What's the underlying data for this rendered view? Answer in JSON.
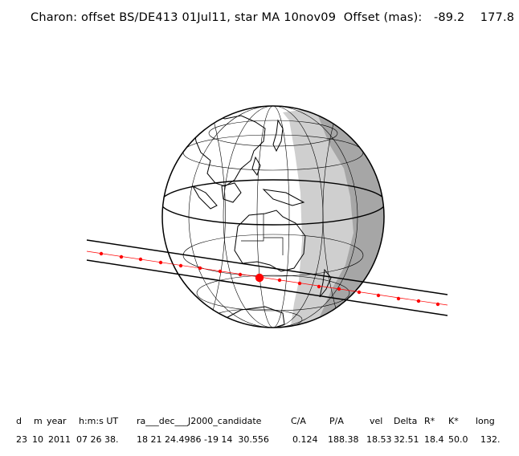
{
  "title": "Charon: offset BS/DE413 01Jul11, star MA 10nov09  Offset (mas):   -89.2    177.8",
  "map": {
    "colors": {
      "day": "#ffffff",
      "twilight": "#cfcfcf",
      "night": "#a6a6a6",
      "outline": "#000000",
      "track": "#ff0000"
    }
  },
  "table": {
    "headers": [
      "d",
      "m",
      "year",
      "h:m:s UT",
      "ra___dec___J2000_candidate",
      "C/A",
      "P/A",
      "vel",
      "Delta",
      "R*",
      "K*",
      "long"
    ],
    "values": [
      "23",
      "10",
      "2011",
      "07 26 38.",
      "18 21 24.4986 -19 14  30.556",
      "0.124",
      "188.38",
      "18.53",
      "32.51",
      "18.4",
      "50.0",
      "132."
    ]
  }
}
